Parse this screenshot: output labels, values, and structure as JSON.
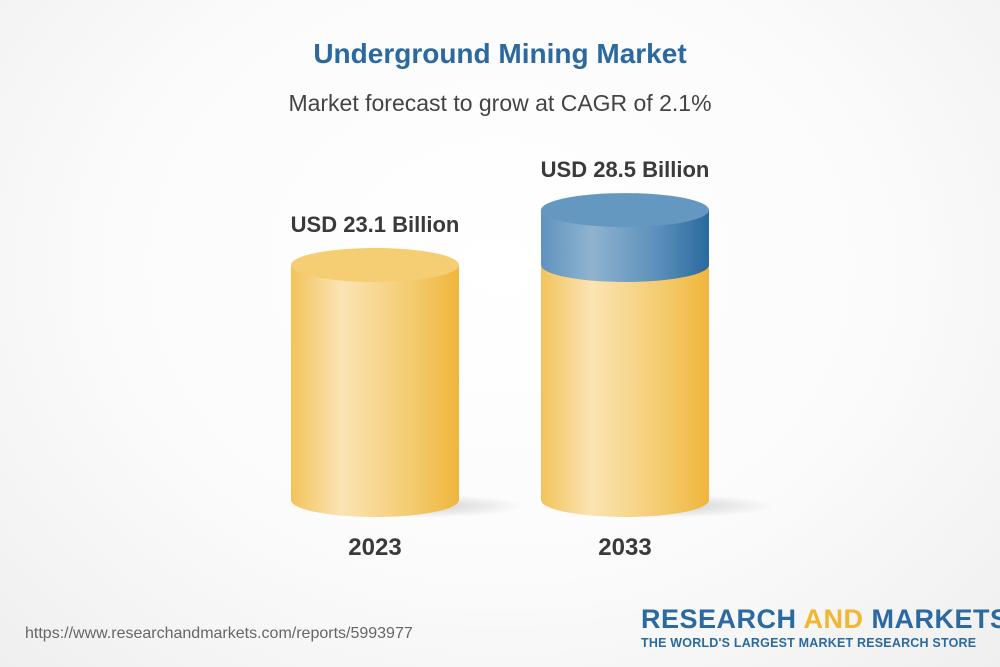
{
  "header": {
    "title": "Underground Mining Market",
    "subtitle": "Market forecast to grow at CAGR of 2.1%"
  },
  "chart_data": {
    "type": "bar",
    "style": "3d-cylinder",
    "categories": [
      "2023",
      "2033"
    ],
    "values": [
      23.1,
      28.5
    ],
    "data_labels": [
      "USD 23.1 Billion",
      "USD 28.5 Billion"
    ],
    "unit": "USD Billion",
    "cagr": "2.1%",
    "colors": {
      "base": "#f2c35a",
      "growth": "#3f7fb0"
    }
  },
  "footer": {
    "url": "https://www.researchandmarkets.com/reports/5993977",
    "logo_part1": "RESEARCH ",
    "logo_part2": "AND",
    "logo_part3": " MARKETS",
    "tagline": "THE WORLD'S LARGEST MARKET RESEARCH STORE"
  }
}
